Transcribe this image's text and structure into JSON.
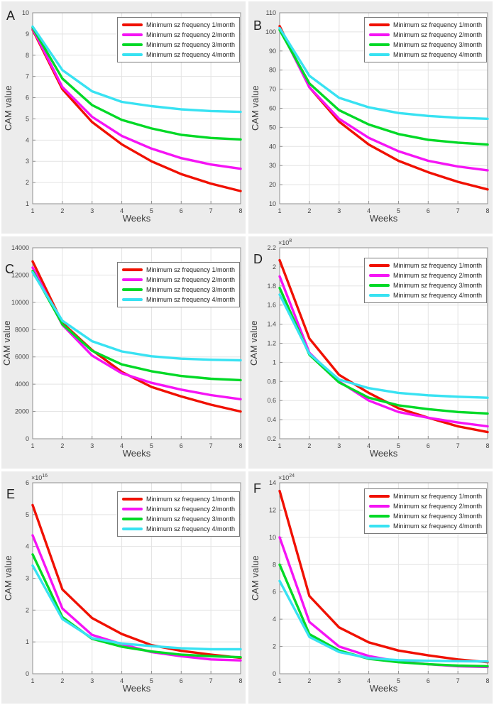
{
  "figure": {
    "background": "#ffffff",
    "panel_background": "#ececec"
  },
  "legend": {
    "position": "top-right",
    "items": [
      {
        "label": "Minimum sz frequency 1/month",
        "color": "#f01000"
      },
      {
        "label": "Minimum sz frequency 2/month",
        "color": "#f514f5"
      },
      {
        "label": "Minimum sz frequency 3/month",
        "color": "#00d926"
      },
      {
        "label": "Minimum sz frequency 4/month",
        "color": "#38e2f2"
      }
    ]
  },
  "chart_data": [
    {
      "panel": "A",
      "type": "line",
      "grid": true,
      "legend_position": "top-right",
      "xlabel": "Weeks",
      "ylabel": "CAM value",
      "x": [
        1,
        2,
        3,
        4,
        5,
        6,
        7,
        8
      ],
      "xtick_labels": [
        "1",
        "2",
        "3",
        "4",
        "5",
        "6",
        "7",
        "8"
      ],
      "ylim": [
        1,
        10
      ],
      "yticks": [
        1,
        2,
        3,
        4,
        5,
        6,
        7,
        8,
        9,
        10
      ],
      "ytick_labels": [
        "1",
        "2",
        "3",
        "4",
        "5",
        "6",
        "7",
        "8",
        "9",
        "10"
      ],
      "series": [
        {
          "key": "1month",
          "name": "Minimum sz frequency 1/month",
          "color": "#f01000",
          "values": [
            9.2,
            6.4,
            4.85,
            3.8,
            3.0,
            2.4,
            1.95,
            1.6
          ]
        },
        {
          "key": "2month",
          "name": "Minimum sz frequency 2/month",
          "color": "#f514f5",
          "values": [
            9.25,
            6.5,
            5.1,
            4.2,
            3.6,
            3.15,
            2.85,
            2.65
          ]
        },
        {
          "key": "3month",
          "name": "Minimum sz frequency 3/month",
          "color": "#00d926",
          "values": [
            9.3,
            6.9,
            5.65,
            4.95,
            4.55,
            4.25,
            4.1,
            4.03
          ]
        },
        {
          "key": "4month",
          "name": "Minimum sz frequency 4/month",
          "color": "#38e2f2",
          "values": [
            9.35,
            7.3,
            6.3,
            5.8,
            5.6,
            5.45,
            5.37,
            5.33
          ]
        }
      ]
    },
    {
      "panel": "B",
      "type": "line",
      "grid": true,
      "legend_position": "top-right",
      "xlabel": "Weeks",
      "ylabel": "CAM value",
      "x": [
        1,
        2,
        3,
        4,
        5,
        6,
        7,
        8
      ],
      "xtick_labels": [
        "1",
        "2",
        "3",
        "4",
        "5",
        "6",
        "7",
        "8"
      ],
      "ylim": [
        10,
        110
      ],
      "yticks": [
        10,
        20,
        30,
        40,
        50,
        60,
        70,
        80,
        90,
        100,
        110
      ],
      "ytick_labels": [
        "10",
        "20",
        "30",
        "40",
        "50",
        "60",
        "70",
        "80",
        "90",
        "100",
        "110"
      ],
      "series": [
        {
          "key": "1month",
          "name": "Minimum sz frequency 1/month",
          "color": "#f01000",
          "values": [
            103,
            71,
            53,
            41,
            32.5,
            26.5,
            21.5,
            17.5
          ]
        },
        {
          "key": "2month",
          "name": "Minimum sz frequency 2/month",
          "color": "#f514f5",
          "values": [
            102,
            71,
            54.5,
            44.5,
            37.5,
            32.5,
            29.5,
            27.5
          ]
        },
        {
          "key": "3month",
          "name": "Minimum sz frequency 3/month",
          "color": "#00d926",
          "values": [
            101,
            73,
            59,
            51.5,
            46.5,
            43.5,
            42,
            41
          ]
        },
        {
          "key": "4month",
          "name": "Minimum sz frequency 4/month",
          "color": "#38e2f2",
          "values": [
            102,
            77,
            65.5,
            60.5,
            57.5,
            56,
            55,
            54.5
          ]
        }
      ]
    },
    {
      "panel": "C",
      "type": "line",
      "grid": true,
      "legend_position": "top-right",
      "xlabel": "Weeks",
      "ylabel": "CAM value",
      "x": [
        1,
        2,
        3,
        4,
        5,
        6,
        7,
        8
      ],
      "xtick_labels": [
        "1",
        "2",
        "3",
        "4",
        "5",
        "6",
        "7",
        "8"
      ],
      "ylim": [
        0,
        14000
      ],
      "yticks": [
        0,
        2000,
        4000,
        6000,
        8000,
        10000,
        12000,
        14000
      ],
      "ytick_labels": [
        "0",
        "2000",
        "4000",
        "6000",
        "8000",
        "10000",
        "12000",
        "14000"
      ],
      "series": [
        {
          "key": "1month",
          "name": "Minimum sz frequency 1/month",
          "color": "#f01000",
          "values": [
            13000,
            8500,
            6500,
            4900,
            3800,
            3100,
            2500,
            2000
          ]
        },
        {
          "key": "2month",
          "name": "Minimum sz frequency 2/month",
          "color": "#f514f5",
          "values": [
            12550,
            8350,
            6100,
            4800,
            4100,
            3600,
            3200,
            2900
          ]
        },
        {
          "key": "3month",
          "name": "Minimum sz frequency 3/month",
          "color": "#00d926",
          "values": [
            12300,
            8400,
            6450,
            5450,
            4950,
            4600,
            4400,
            4300
          ]
        },
        {
          "key": "4month",
          "name": "Minimum sz frequency 4/month",
          "color": "#38e2f2",
          "values": [
            12200,
            8650,
            7150,
            6400,
            6050,
            5870,
            5790,
            5750
          ]
        }
      ]
    },
    {
      "panel": "D",
      "type": "line",
      "grid": true,
      "legend_position": "top-right",
      "xlabel": "Weeks",
      "ylabel": "CAM value",
      "exp_base": "×10",
      "exp_power": "8",
      "values_scale": "1e8",
      "x": [
        1,
        2,
        3,
        4,
        5,
        6,
        7,
        8
      ],
      "xtick_labels": [
        "1",
        "2",
        "3",
        "4",
        "5",
        "6",
        "7",
        "8"
      ],
      "ylim": [
        0.2,
        2.2
      ],
      "yticks": [
        0.2,
        0.4,
        0.6,
        0.8,
        1,
        1.2,
        1.4,
        1.6,
        1.8,
        2,
        2.2
      ],
      "ytick_labels": [
        "0.2",
        "0.4",
        "0.6",
        "0.8",
        "1",
        "1.2",
        "1.4",
        "1.6",
        "1.8",
        "2",
        "2.2"
      ],
      "series": [
        {
          "key": "1month",
          "name": "Minimum sz frequency 1/month",
          "color": "#f01000",
          "values": [
            2.07,
            1.25,
            0.87,
            0.68,
            0.52,
            0.42,
            0.33,
            0.27
          ]
        },
        {
          "key": "2month",
          "name": "Minimum sz frequency 2/month",
          "color": "#f514f5",
          "values": [
            1.9,
            1.1,
            0.8,
            0.6,
            0.48,
            0.42,
            0.37,
            0.33
          ]
        },
        {
          "key": "3month",
          "name": "Minimum sz frequency 3/month",
          "color": "#00d926",
          "values": [
            1.78,
            1.08,
            0.79,
            0.63,
            0.55,
            0.51,
            0.48,
            0.465
          ]
        },
        {
          "key": "4month",
          "name": "Minimum sz frequency 4/month",
          "color": "#38e2f2",
          "values": [
            1.71,
            1.09,
            0.82,
            0.73,
            0.68,
            0.655,
            0.64,
            0.63
          ]
        }
      ]
    },
    {
      "panel": "E",
      "type": "line",
      "grid": true,
      "legend_position": "top-right",
      "xlabel": "Weeks",
      "ylabel": "CAM value",
      "exp_base": "×10",
      "exp_power": "16",
      "values_scale": "1e16",
      "x": [
        1,
        2,
        3,
        4,
        5,
        6,
        7,
        8
      ],
      "xtick_labels": [
        "1",
        "2",
        "3",
        "4",
        "5",
        "6",
        "7",
        "8"
      ],
      "ylim": [
        0,
        6
      ],
      "yticks": [
        0,
        1,
        2,
        3,
        4,
        5,
        6
      ],
      "ytick_labels": [
        "0",
        "1",
        "2",
        "3",
        "4",
        "5",
        "6"
      ],
      "series": [
        {
          "key": "1month",
          "name": "Minimum sz frequency 1/month",
          "color": "#f01000",
          "values": [
            5.3,
            2.65,
            1.75,
            1.25,
            0.9,
            0.72,
            0.6,
            0.5
          ]
        },
        {
          "key": "2month",
          "name": "Minimum sz frequency 2/month",
          "color": "#f514f5",
          "values": [
            4.35,
            2.05,
            1.22,
            0.93,
            0.68,
            0.55,
            0.45,
            0.42
          ]
        },
        {
          "key": "3month",
          "name": "Minimum sz frequency 3/month",
          "color": "#00d926",
          "values": [
            3.75,
            1.78,
            1.1,
            0.85,
            0.7,
            0.6,
            0.55,
            0.52
          ]
        },
        {
          "key": "4month",
          "name": "Minimum sz frequency 4/month",
          "color": "#38e2f2",
          "values": [
            3.4,
            1.72,
            1.12,
            0.95,
            0.87,
            0.8,
            0.77,
            0.77
          ]
        }
      ]
    },
    {
      "panel": "F",
      "type": "line",
      "grid": true,
      "legend_position": "top-right",
      "xlabel": "Weeks",
      "ylabel": "CAM value",
      "exp_base": "×10",
      "exp_power": "24",
      "values_scale": "1e24",
      "x": [
        1,
        2,
        3,
        4,
        5,
        6,
        7,
        8
      ],
      "xtick_labels": [
        "1",
        "2",
        "3",
        "4",
        "5",
        "6",
        "7",
        "8"
      ],
      "ylim": [
        0,
        14
      ],
      "yticks": [
        0,
        2,
        4,
        6,
        8,
        10,
        12,
        14
      ],
      "ytick_labels": [
        "0",
        "2",
        "4",
        "6",
        "8",
        "10",
        "12",
        "14"
      ],
      "series": [
        {
          "key": "1month",
          "name": "Minimum sz frequency 1/month",
          "color": "#f01000",
          "values": [
            13.4,
            5.7,
            3.4,
            2.3,
            1.7,
            1.35,
            1.05,
            0.85
          ]
        },
        {
          "key": "2month",
          "name": "Minimum sz frequency 2/month",
          "color": "#f514f5",
          "values": [
            10,
            3.8,
            2,
            1.3,
            0.9,
            0.7,
            0.55,
            0.5
          ]
        },
        {
          "key": "3month",
          "name": "Minimum sz frequency 3/month",
          "color": "#00d926",
          "values": [
            8,
            2.9,
            1.7,
            1.1,
            0.85,
            0.7,
            0.6,
            0.55
          ]
        },
        {
          "key": "4month",
          "name": "Minimum sz frequency 4/month",
          "color": "#38e2f2",
          "values": [
            6.8,
            2.7,
            1.6,
            1.15,
            1,
            0.95,
            0.92,
            0.9
          ]
        }
      ]
    }
  ]
}
